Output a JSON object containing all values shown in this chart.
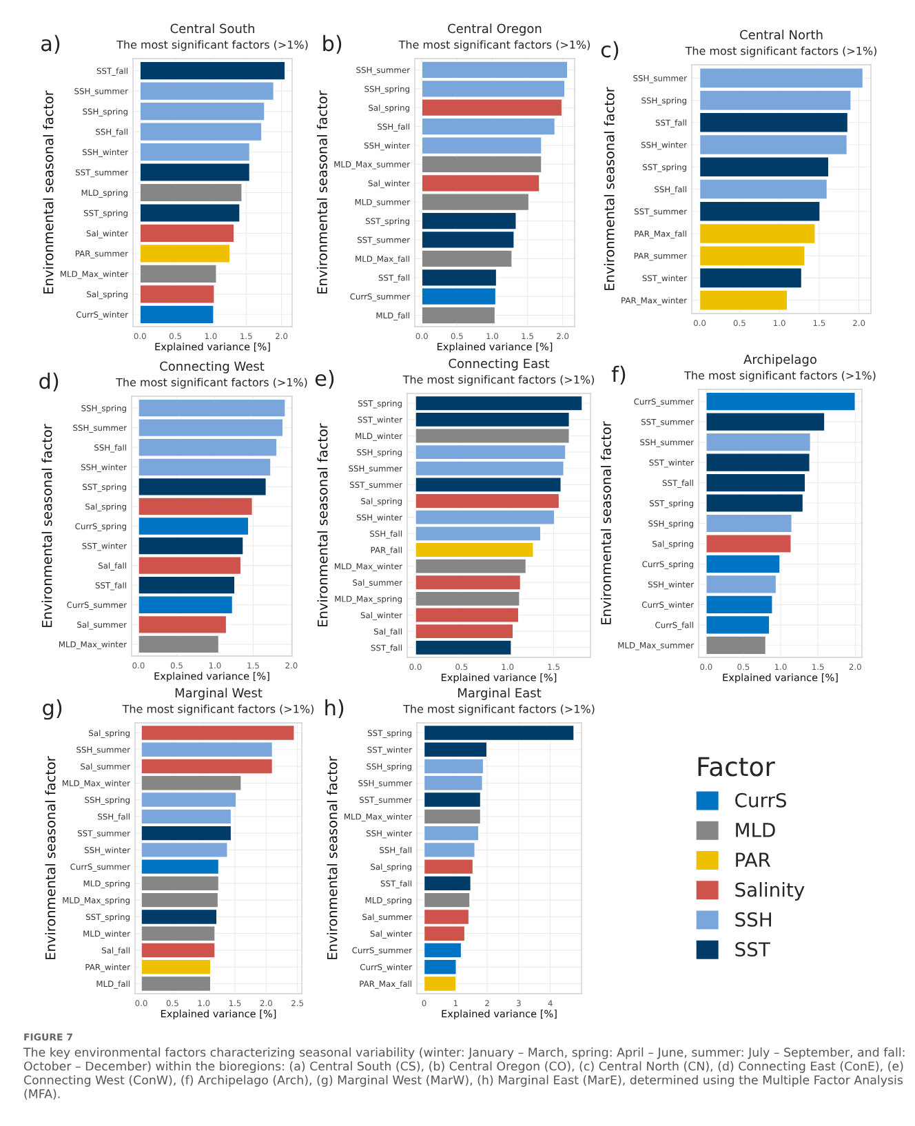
{
  "chart_data": [
    {
      "type": "bar",
      "orientation": "horizontal",
      "title": "Central South",
      "subtitle": "The most significant factors (>1%)",
      "xlabel": "Explained variance [%]",
      "ylabel": "Environmental seasonal factor",
      "annotations": [
        "a)"
      ],
      "categories": [
        "SST_fall",
        "SSH_summer",
        "SSH_spring",
        "SSH_fall",
        "SSH_winter",
        "SST_summer",
        "MLD_spring",
        "SST_spring",
        "Sal_winter",
        "PAR_summer",
        "MLD_Max_winter",
        "Sal_spring",
        "CurrS_winter"
      ],
      "values": [
        2.05,
        1.89,
        1.76,
        1.72,
        1.55,
        1.55,
        1.44,
        1.41,
        1.33,
        1.27,
        1.08,
        1.05,
        1.04
      ],
      "colors": [
        "#003c67",
        "#7aa6dc",
        "#7aa6dc",
        "#7aa6dc",
        "#7aa6dc",
        "#003c67",
        "#868686",
        "#003c67",
        "#cd534c",
        "#efc000",
        "#868686",
        "#cd534c",
        "#0073c2"
      ],
      "xlim": [
        -0.1,
        2.15
      ],
      "xticks": [
        {
          "value": 0,
          "label": "0.0"
        },
        {
          "value": 0.5,
          "label": "0.5"
        },
        {
          "value": 1,
          "label": "1.0"
        },
        {
          "value": 1.5,
          "label": "1.5"
        },
        {
          "value": 2,
          "label": "2.0"
        }
      ],
      "grid": true
    },
    {
      "type": "bar",
      "orientation": "horizontal",
      "title": "Central Oregon",
      "subtitle": "The most significant factors (>1%)",
      "xlabel": "Explained variance [%]",
      "ylabel": "Environmental seasonal factor",
      "annotations": [
        "b)"
      ],
      "categories": [
        "SSH_summer",
        "SSH_spring",
        "Sal_spring",
        "SSH_fall",
        "SSH_winter",
        "MLD_Max_summer",
        "Sal_winter",
        "MLD_summer",
        "SST_spring",
        "SST_summer",
        "MLD_Max_fall",
        "SST_fall",
        "CurrS_summer",
        "MLD_fall"
      ],
      "values": [
        2.07,
        2.03,
        1.99,
        1.89,
        1.7,
        1.7,
        1.67,
        1.52,
        1.34,
        1.31,
        1.28,
        1.06,
        1.05,
        1.04
      ],
      "colors": [
        "#7aa6dc",
        "#7aa6dc",
        "#cd534c",
        "#7aa6dc",
        "#7aa6dc",
        "#868686",
        "#cd534c",
        "#868686",
        "#003c67",
        "#003c67",
        "#868686",
        "#003c67",
        "#0073c2",
        "#868686"
      ],
      "xlim": [
        -0.1,
        2.17
      ],
      "xticks": [
        {
          "value": 0,
          "label": "0.0"
        },
        {
          "value": 0.5,
          "label": "0.5"
        },
        {
          "value": 1,
          "label": "1.0"
        },
        {
          "value": 1.5,
          "label": "1.5"
        },
        {
          "value": 2,
          "label": "2.0"
        }
      ],
      "grid": true
    },
    {
      "type": "bar",
      "orientation": "horizontal",
      "title": "Central North",
      "subtitle": "The most significant factors (>1%)",
      "ylabel": "Environmental seasonal factor",
      "annotations": [
        "c)"
      ],
      "categories": [
        "SSH_summer",
        "SSH_spring",
        "SST_fall",
        "SSH_winter",
        "SST_spring",
        "SSH_fall",
        "SST_summer",
        "PAR_Max_fall",
        "PAR_summer",
        "SST_winter",
        "PAR_Max_winter"
      ],
      "values": [
        2.05,
        1.9,
        1.86,
        1.85,
        1.62,
        1.6,
        1.51,
        1.45,
        1.32,
        1.28,
        1.1
      ],
      "colors": [
        "#7aa6dc",
        "#7aa6dc",
        "#003c67",
        "#7aa6dc",
        "#003c67",
        "#7aa6dc",
        "#003c67",
        "#efc000",
        "#efc000",
        "#003c67",
        "#efc000"
      ],
      "xlim": [
        -0.1,
        2.15
      ],
      "xticks": [
        {
          "value": 0,
          "label": "0.0"
        },
        {
          "value": 0.5,
          "label": "0.5"
        },
        {
          "value": 1,
          "label": "1.0"
        },
        {
          "value": 1.5,
          "label": "1.5"
        },
        {
          "value": 2,
          "label": "2.0"
        }
      ],
      "grid": true
    },
    {
      "type": "bar",
      "orientation": "horizontal",
      "title": "Connecting West",
      "subtitle": "The most significant factors (>1%)",
      "xlabel": "Explained variance [%]",
      "ylabel": "Environmental seasonal factor",
      "annotations": [
        "d)"
      ],
      "categories": [
        "SSH_spring",
        "SSH_summer",
        "SSH_fall",
        "SSH_winter",
        "SST_spring",
        "Sal_spring",
        "CurrS_spring",
        "SST_winter",
        "Sal_fall",
        "SST_fall",
        "CurrS_summer",
        "Sal_summer",
        "MLD_Max_winter"
      ],
      "values": [
        1.92,
        1.89,
        1.81,
        1.73,
        1.67,
        1.49,
        1.44,
        1.37,
        1.34,
        1.26,
        1.23,
        1.15,
        1.05
      ],
      "colors": [
        "#7aa6dc",
        "#7aa6dc",
        "#7aa6dc",
        "#7aa6dc",
        "#003c67",
        "#cd534c",
        "#0073c2",
        "#003c67",
        "#cd534c",
        "#003c67",
        "#0073c2",
        "#cd534c",
        "#868686"
      ],
      "xlim": [
        -0.09,
        2.01
      ],
      "xticks": [
        {
          "value": 0,
          "label": "0.0"
        },
        {
          "value": 0.5,
          "label": "0.5"
        },
        {
          "value": 1,
          "label": "1.0"
        },
        {
          "value": 1.5,
          "label": "1.5"
        },
        {
          "value": 2,
          "label": "2.0"
        }
      ],
      "grid": true
    },
    {
      "type": "bar",
      "orientation": "horizontal",
      "title": "Connecting East",
      "subtitle": "The most significant factors (>1%)",
      "xlabel": "Explained variance [%]",
      "ylabel": "Environmental seasonal factor",
      "annotations": [
        "e)"
      ],
      "categories": [
        "SST_spring",
        "SST_winter",
        "MLD_winter",
        "SSH_spring",
        "SSH_summer",
        "SST_summer",
        "Sal_spring",
        "SSH_winter",
        "SSH_fall",
        "PAR_fall",
        "MLD_Max_winter",
        "Sal_summer",
        "MLD_Max_spring",
        "Sal_winter",
        "Sal_fall",
        "SST_fall"
      ],
      "values": [
        1.81,
        1.67,
        1.67,
        1.63,
        1.61,
        1.58,
        1.56,
        1.51,
        1.36,
        1.28,
        1.2,
        1.14,
        1.13,
        1.12,
        1.06,
        1.04
      ],
      "colors": [
        "#003c67",
        "#003c67",
        "#868686",
        "#7aa6dc",
        "#7aa6dc",
        "#003c67",
        "#cd534c",
        "#7aa6dc",
        "#7aa6dc",
        "#efc000",
        "#868686",
        "#cd534c",
        "#868686",
        "#cd534c",
        "#cd534c",
        "#003c67"
      ],
      "xlim": [
        -0.09,
        1.9
      ],
      "xticks": [
        {
          "value": 0,
          "label": "0.0"
        },
        {
          "value": 0.5,
          "label": "0.5"
        },
        {
          "value": 1,
          "label": "1.0"
        },
        {
          "value": 1.5,
          "label": "1.5"
        }
      ],
      "grid": true
    },
    {
      "type": "bar",
      "orientation": "horizontal",
      "title": "Archipelago",
      "subtitle": "The most significant factors (>1%)",
      "xlabel": "Explained variance [%]",
      "ylabel": "Environmental seasonal factor",
      "annotations": [
        "f)"
      ],
      "categories": [
        "CurrS_summer",
        "SST_summer",
        "SSH_summer",
        "SST_winter",
        "SST_fall",
        "SST_spring",
        "SSH_spring",
        "Sal_spring",
        "CurrS_spring",
        "SSH_winter",
        "CurrS_winter",
        "CurrS_fall",
        "MLD_Max_summer"
      ],
      "values": [
        2.0,
        1.59,
        1.4,
        1.39,
        1.33,
        1.3,
        1.15,
        1.14,
        0.99,
        0.94,
        0.89,
        0.85,
        0.8
      ],
      "colors": [
        "#0073c2",
        "#003c67",
        "#7aa6dc",
        "#003c67",
        "#003c67",
        "#003c67",
        "#7aa6dc",
        "#cd534c",
        "#0073c2",
        "#7aa6dc",
        "#0073c2",
        "#0073c2",
        "#868686"
      ],
      "xlim": [
        -0.1,
        2.09
      ],
      "xticks": [
        {
          "value": 0,
          "label": "0.0"
        },
        {
          "value": 0.5,
          "label": "0.5"
        },
        {
          "value": 1,
          "label": "1.0"
        },
        {
          "value": 1.5,
          "label": "1.5"
        },
        {
          "value": 2,
          "label": "2.0"
        }
      ],
      "grid": true
    },
    {
      "type": "bar",
      "orientation": "horizontal",
      "title": "Marginal West",
      "subtitle": "The most significant factors (>1%)",
      "xlabel": "Explained variance [%]",
      "ylabel": "Environmental seasonal factor",
      "annotations": [
        "g)"
      ],
      "categories": [
        "Sal_spring",
        "SSH_summer",
        "Sal_summer",
        "MLD_Max_winter",
        "SSH_spring",
        "SSH_fall",
        "SST_summer",
        "SSH_winter",
        "CurrS_summer",
        "MLD_spring",
        "MLD_Max_spring",
        "SST_spring",
        "MLD_winter",
        "Sal_fall",
        "PAR_winter",
        "MLD_fall"
      ],
      "values": [
        2.45,
        2.1,
        2.1,
        1.6,
        1.52,
        1.44,
        1.44,
        1.38,
        1.24,
        1.24,
        1.23,
        1.21,
        1.18,
        1.18,
        1.11,
        1.11
      ],
      "colors": [
        "#cd534c",
        "#7aa6dc",
        "#cd534c",
        "#868686",
        "#7aa6dc",
        "#7aa6dc",
        "#003c67",
        "#7aa6dc",
        "#0073c2",
        "#868686",
        "#868686",
        "#003c67",
        "#868686",
        "#cd534c",
        "#efc000",
        "#868686"
      ],
      "xlim": [
        -0.1,
        2.57
      ],
      "xticks": [
        {
          "value": 0,
          "label": "0.0"
        },
        {
          "value": 0.5,
          "label": "0.5"
        },
        {
          "value": 1,
          "label": "1.0"
        },
        {
          "value": 1.5,
          "label": "1.5"
        },
        {
          "value": 2,
          "label": "2.0"
        },
        {
          "value": 2.5,
          "label": "2.5"
        }
      ],
      "grid": true
    },
    {
      "type": "bar",
      "orientation": "horizontal",
      "title": "Marginal East",
      "subtitle": "The most significant factors (>1%)",
      "xlabel": "Explained variance [%]",
      "ylabel": "Environmental seasonal factor",
      "legend_title": "Factor",
      "legend": "right",
      "annotations": [
        "h)",
        "FIGURE 7",
        "The key environmental factors characterizing seasonal variability (winter: January – March, spring: April – June, summer: July – September, and fall: October – December) within the bioregions: (a) Central South (CS), (b) Central Oregon (CO), (c) Central North (CN), (d) Connecting East (ConE), (e) Connecting West (ConW), (f) Archipelago (Arch), (g) Marginal West (MarW), (h) Marginal East (MarE), determined using the Multiple Factor Analysis (MFA)."
      ],
      "categories": [
        "SST_spring",
        "SST_winter",
        "SSH_spring",
        "SSH_summer",
        "SST_summer",
        "MLD_Max_winter",
        "SSH_winter",
        "SSH_fall",
        "Sal_spring",
        "SST_fall",
        "MLD_spring",
        "Sal_summer",
        "Sal_winter",
        "CurrS_summer",
        "CurrS_winter",
        "PAR_Max_fall"
      ],
      "series": [
        {
          "name": "CurrS",
          "color": "#0073c2",
          "values": [
            null,
            null,
            null,
            null,
            null,
            null,
            null,
            null,
            null,
            null,
            null,
            null,
            null,
            1.18,
            1.02,
            null
          ]
        },
        {
          "name": "MLD",
          "color": "#868686",
          "values": [
            null,
            null,
            null,
            null,
            null,
            1.79,
            null,
            null,
            null,
            null,
            1.45,
            null,
            null,
            null,
            null,
            null
          ]
        },
        {
          "name": "PAR",
          "color": "#efc000",
          "values": [
            null,
            null,
            null,
            null,
            null,
            null,
            null,
            null,
            null,
            null,
            null,
            null,
            null,
            null,
            null,
            1.01
          ]
        },
        {
          "name": "Salinity",
          "color": "#cd534c",
          "values": [
            null,
            null,
            null,
            null,
            null,
            null,
            null,
            null,
            1.55,
            null,
            null,
            1.42,
            1.29,
            null,
            null,
            null
          ]
        },
        {
          "name": "SSH",
          "color": "#7aa6dc",
          "values": [
            null,
            null,
            1.88,
            1.85,
            null,
            null,
            1.73,
            1.61,
            null,
            null,
            null,
            null,
            null,
            null,
            null,
            null
          ]
        },
        {
          "name": "SST",
          "color": "#003c67",
          "values": [
            4.75,
            1.99,
            null,
            null,
            1.79,
            null,
            null,
            null,
            null,
            1.48,
            null,
            null,
            null,
            null,
            null,
            null
          ]
        }
      ],
      "xlim": [
        -0.23,
        4.99
      ],
      "xticks": [
        0,
        1,
        2,
        3,
        4
      ],
      "grid": true
    }
  ]
}
